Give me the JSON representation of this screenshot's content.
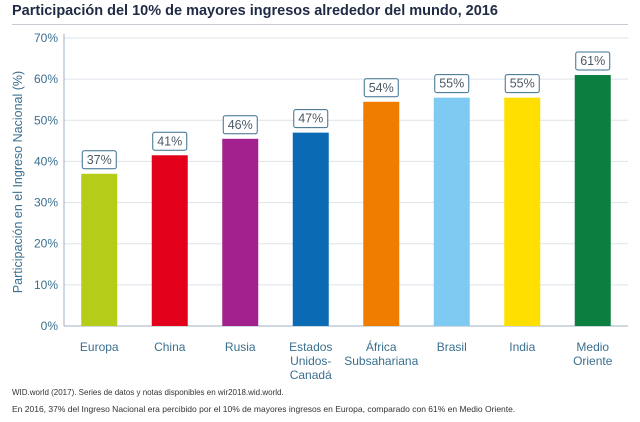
{
  "chart_data": {
    "type": "bar",
    "title": "Participación del 10% de mayores ingresos alrededor del mundo, 2016",
    "xlabel": "",
    "ylabel": "Participación en el Ingreso Nacional (%)",
    "ylim": [
      0,
      70
    ],
    "yticks": [
      "0%",
      "10%",
      "20%",
      "30%",
      "40%",
      "50%",
      "60%",
      "70%"
    ],
    "grid": true,
    "categories": [
      [
        "Europa"
      ],
      [
        "China"
      ],
      [
        "Rusia"
      ],
      [
        "Estados",
        "Unidos-",
        "Canadá"
      ],
      [
        "África",
        "Subsahariana"
      ],
      [
        "Brasil"
      ],
      [
        "India"
      ],
      [
        "Medio",
        "Oriente"
      ]
    ],
    "values": [
      37,
      41.5,
      45.5,
      47,
      54.5,
      55.5,
      55.5,
      61
    ],
    "data_labels": [
      "37%",
      "41%",
      "46%",
      "47%",
      "54%",
      "55%",
      "55%",
      "61%"
    ],
    "colors": [
      "#b5cc18",
      "#e3001b",
      "#a3218e",
      "#0a6ab3",
      "#f07d00",
      "#7fcaf2",
      "#ffdf00",
      "#0a7f3f"
    ]
  },
  "footer": {
    "source": "WID.world (2017). Series de datos y notas disponibles en wir2018.wid.world.",
    "note": "En 2016, 37% del Ingreso Nacional era percibido por el 10% de mayores ingresos en Europa, comparado con 61% en Medio Oriente."
  },
  "colors": {
    "axis_text": "#3a6f8f",
    "label_border": "#3a6f8f",
    "grid": "#dde3ea"
  }
}
